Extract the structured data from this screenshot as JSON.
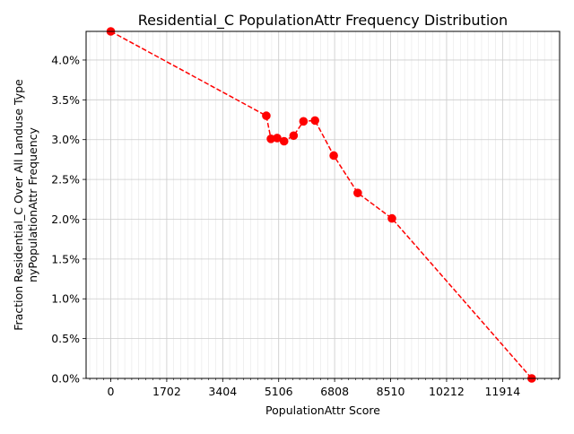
{
  "chart_data": {
    "type": "line",
    "title": "Residential_C PopulationAttr Frequency Distribution",
    "xlabel": "PopulationAttr Score",
    "ylabel_lines": [
      "Fraction Residential_C Over All Landuse Type",
      "nyPopulationAttr Frequency"
    ],
    "xlim": [
      -750,
      13650
    ],
    "ylim": [
      0,
      0.0436
    ],
    "x_ticks": [
      0,
      1702,
      3404,
      5106,
      6808,
      8510,
      10212,
      11914
    ],
    "x_tick_labels": [
      "0",
      "1702",
      "3404",
      "5106",
      "6808",
      "8510",
      "10212",
      "11914"
    ],
    "y_ticks": [
      0,
      0.005,
      0.01,
      0.015,
      0.02,
      0.025,
      0.03,
      0.035,
      0.04
    ],
    "y_tick_labels": [
      "0.0%",
      "0.5%",
      "1.0%",
      "1.5%",
      "2.0%",
      "2.5%",
      "3.0%",
      "3.5%",
      "4.0%"
    ],
    "grid": true,
    "minor_grid": true,
    "series": [
      {
        "color": "#ff0000",
        "line_style": "dashed",
        "marker": "circle",
        "x": [
          0,
          4730,
          4870,
          5060,
          5270,
          5560,
          5860,
          6210,
          6780,
          7510,
          8550,
          12800
        ],
        "y": [
          0.0436,
          0.033,
          0.0301,
          0.0302,
          0.0298,
          0.0305,
          0.0323,
          0.0324,
          0.028,
          0.0233,
          0.0201,
          0.0
        ]
      }
    ]
  }
}
